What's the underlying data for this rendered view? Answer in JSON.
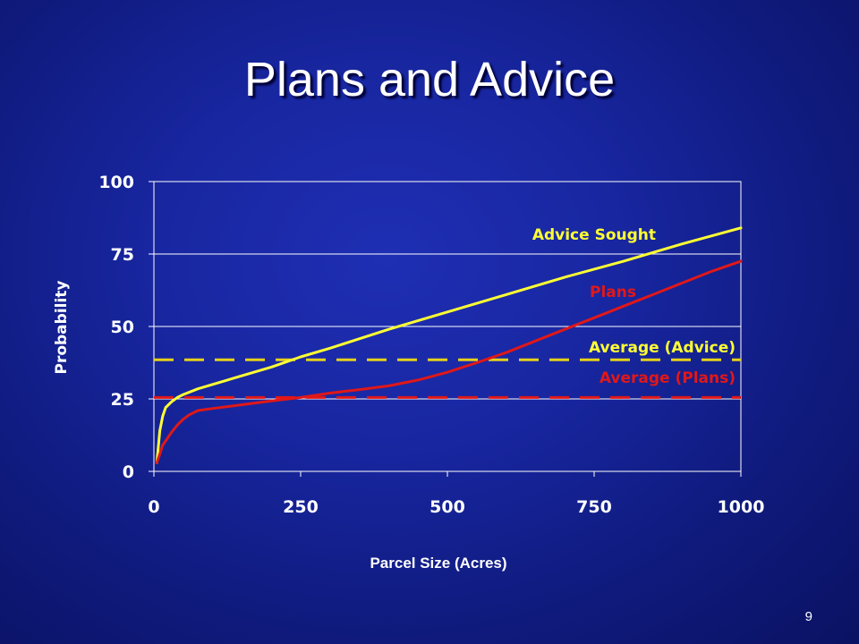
{
  "slide": {
    "title": "Plans and Advice",
    "page_number": "9"
  },
  "chart_data": {
    "type": "line",
    "xlabel": "Parcel Size (Acres)",
    "ylabel": "Probability",
    "xlim": [
      0,
      1000
    ],
    "ylim": [
      0,
      100
    ],
    "xticks": [
      "0",
      "250",
      "500",
      "750",
      "1000"
    ],
    "yticks": [
      "0",
      "25",
      "50",
      "75",
      "100"
    ],
    "grid": "horizontal",
    "series": [
      {
        "name": "Advice Sought",
        "color": "#ffff33",
        "style": "solid",
        "x": [
          5,
          10,
          15,
          20,
          30,
          40,
          50,
          75,
          100,
          150,
          200,
          250,
          300,
          400,
          500,
          600,
          700,
          800,
          900,
          1000
        ],
        "y": [
          3,
          14,
          19,
          22,
          24,
          25.5,
          26.5,
          28.5,
          30,
          33,
          36,
          39.5,
          42.5,
          49,
          55,
          61,
          67,
          72.5,
          78.5,
          84
        ]
      },
      {
        "name": "Plans",
        "color": "#e01818",
        "style": "solid",
        "x": [
          5,
          10,
          15,
          20,
          30,
          40,
          50,
          60,
          75,
          100,
          150,
          200,
          250,
          300,
          350,
          400,
          450,
          500,
          550,
          600,
          650,
          700,
          750,
          800,
          850,
          900,
          950,
          1000
        ],
        "y": [
          3,
          6,
          9,
          10.5,
          13.5,
          16,
          18,
          19.5,
          21,
          21.7,
          23,
          24.3,
          25.5,
          27,
          28.2,
          29.5,
          31.5,
          34.2,
          37.5,
          41,
          45,
          49,
          53,
          57,
          61,
          65,
          69,
          72.5
        ]
      }
    ],
    "reference_lines": [
      {
        "name": "Average (Advice)",
        "value": 38.5,
        "color": "#e6d21a",
        "style": "dashed"
      },
      {
        "name": "Average (Plans)",
        "value": 25.5,
        "color": "#e01818",
        "style": "dashed"
      }
    ],
    "annotations": [
      {
        "text": "Advice Sought",
        "color": "#ffff33"
      },
      {
        "text": "Plans",
        "color": "#e01818"
      },
      {
        "text": "Average (Advice)",
        "color": "#ffff33"
      },
      {
        "text": "Average (Plans)",
        "color": "#e01818"
      }
    ]
  }
}
